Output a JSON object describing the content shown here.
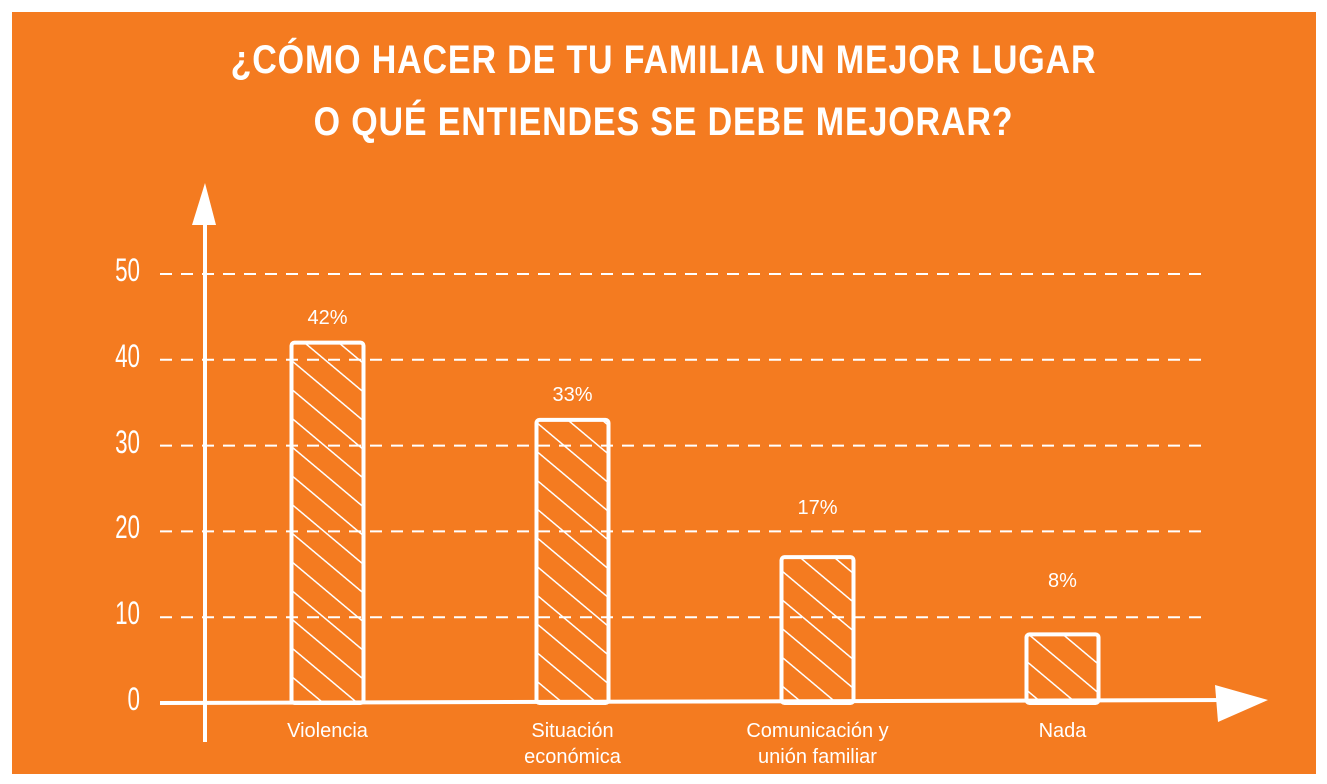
{
  "chart_data": {
    "type": "bar",
    "title": [
      "¿CÓMO HACER DE TU FAMILIA UN MEJOR LUGAR",
      "O QUÉ ENTIENDES SE DEBE MEJORAR?"
    ],
    "categories": [
      "Violencia",
      "Situación económica",
      "Comunicación y unión familiar",
      "Nada"
    ],
    "values": [
      42,
      33,
      17,
      8
    ],
    "value_labels": [
      "42%",
      "33%",
      "17%",
      "8%"
    ],
    "color": "#ffffff",
    "ylim": [
      0,
      50
    ],
    "yticks": [
      0,
      10,
      20,
      30,
      40,
      50
    ],
    "grid": true
  }
}
